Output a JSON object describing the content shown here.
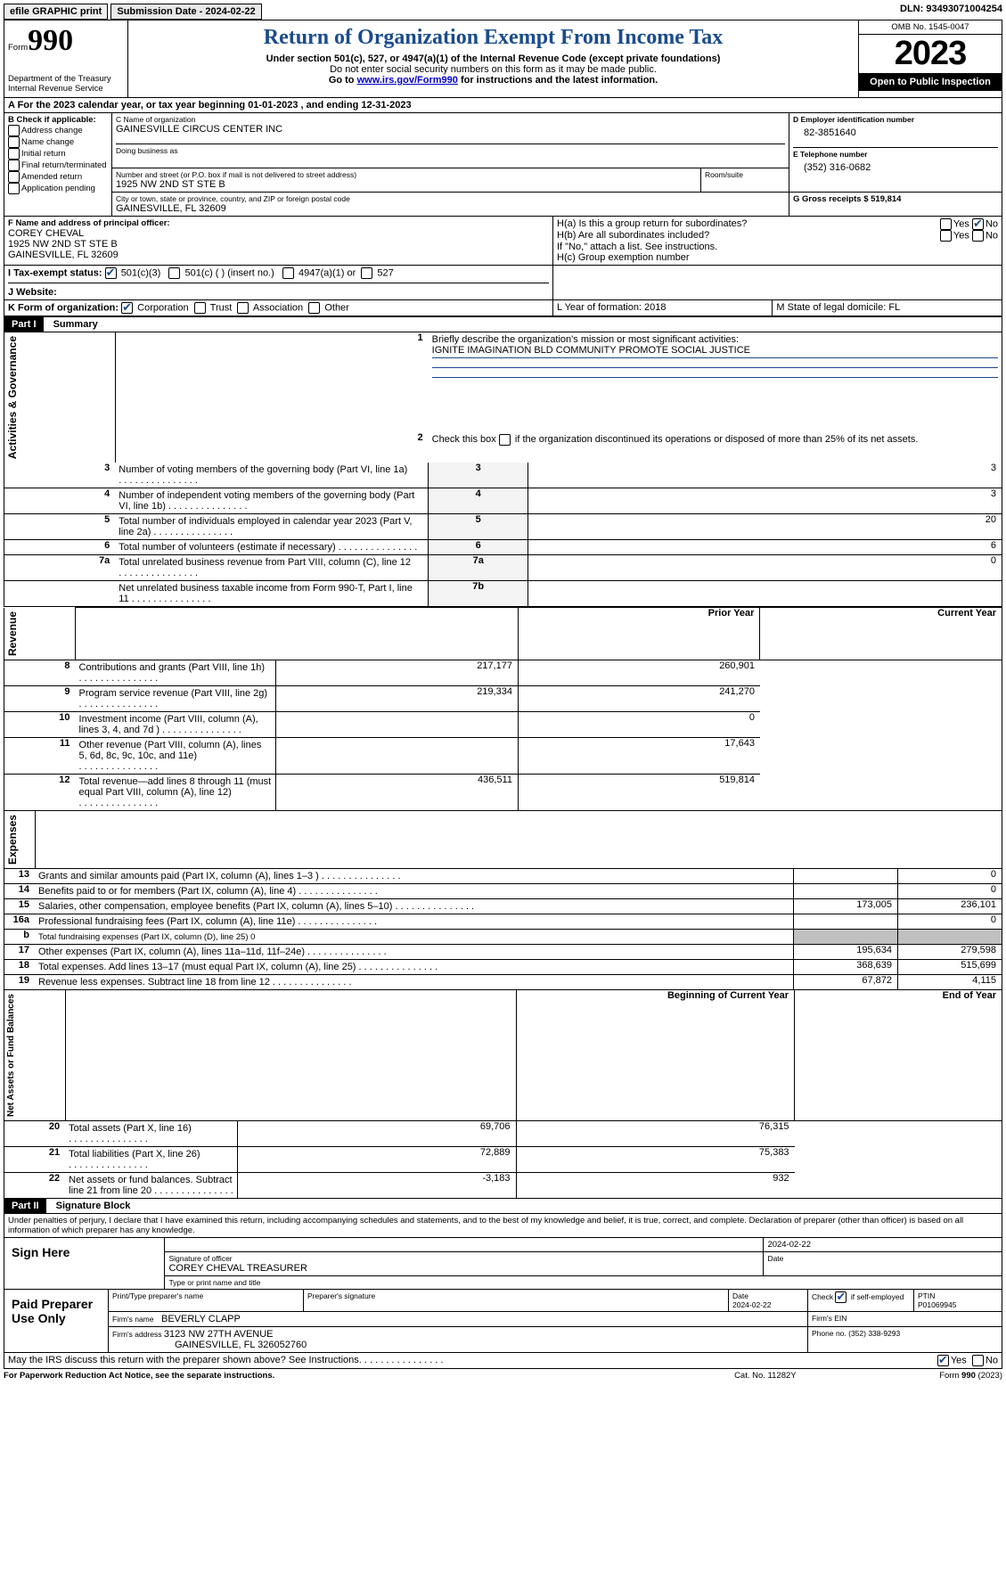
{
  "toolbar": {
    "efile": "efile GRAPHIC print",
    "submission_label": "Submission Date - 2024-02-22",
    "dln_label": "DLN: 93493071004254"
  },
  "header": {
    "form_word": "Form",
    "form_no": "990",
    "title": "Return of Organization Exempt From Income Tax",
    "subtitle": "Under section 501(c), 527, or 4947(a)(1) of the Internal Revenue Code (except private foundations)",
    "ssn_note": "Do not enter social security numbers on this form as it may be made public.",
    "goto": "Go to ",
    "goto_url": "www.irs.gov/Form990",
    "goto_tail": " for instructions and the latest information.",
    "dept": "Department of the Treasury",
    "irs": "Internal Revenue Service",
    "omb": "OMB No. 1545-0047",
    "year": "2023",
    "open": "Open to Public Inspection"
  },
  "A": {
    "line": "A For the 2023 calendar year, or tax year beginning 01-01-2023   , and ending 12-31-2023"
  },
  "B": {
    "label": "B Check if applicable:",
    "items": [
      "Address change",
      "Name change",
      "Initial return",
      "Final return/terminated",
      "Amended return",
      "Application pending"
    ]
  },
  "C": {
    "name_label": "C Name of organization",
    "name": "GAINESVILLE CIRCUS CENTER INC",
    "dba_label": "Doing business as",
    "street_label": "Number and street (or P.O. box if mail is not delivered to street address)",
    "street": "1925 NW 2ND ST STE B",
    "room_label": "Room/suite",
    "city_label": "City or town, state or province, country, and ZIP or foreign postal code",
    "city": "GAINESVILLE, FL  32609"
  },
  "D": {
    "label": "D Employer identification number",
    "value": "82-3851640"
  },
  "E": {
    "label": "E Telephone number",
    "value": "(352) 316-0682"
  },
  "G": {
    "label": "G Gross receipts $ 519,814"
  },
  "F": {
    "label": "F  Name and address of principal officer:",
    "name": "COREY CHEVAL",
    "addr1": "1925 NW 2ND ST STE B",
    "addr2": "GAINESVILLE, FL  32609"
  },
  "H": {
    "a": "H(a)  Is this a group return for subordinates?",
    "b": "H(b)  Are all subordinates included?",
    "note": "If \"No,\" attach a list. See instructions.",
    "c": "H(c)  Group exemption number "
  },
  "I": {
    "label": "I   Tax-exempt status:",
    "opts": [
      "501(c)(3)",
      "501(c) (  ) (insert no.)",
      "4947(a)(1) or",
      "527"
    ]
  },
  "J": {
    "label": "J   Website: "
  },
  "K": {
    "label": "K Form of organization:",
    "opts": [
      "Corporation",
      "Trust",
      "Association",
      "Other"
    ]
  },
  "L": {
    "label": "L Year of formation: 2018"
  },
  "M": {
    "label": "M State of legal domicile: FL"
  },
  "part1": {
    "tab": "Part I",
    "title": "Summary",
    "q1": "Briefly describe the organization's mission or most significant activities:",
    "mission": "IGNITE IMAGINATION BLD COMMUNITY PROMOTE SOCIAL JUSTICE",
    "q2": "Check this box         if the organization discontinued its operations or disposed of more than 25% of its net assets.",
    "rows_ag": [
      {
        "n": "3",
        "t": "Number of voting members of the governing body (Part VI, line 1a)",
        "box": "3",
        "v": "3"
      },
      {
        "n": "4",
        "t": "Number of independent voting members of the governing body (Part VI, line 1b)",
        "box": "4",
        "v": "3"
      },
      {
        "n": "5",
        "t": "Total number of individuals employed in calendar year 2023 (Part V, line 2a)",
        "box": "5",
        "v": "20"
      },
      {
        "n": "6",
        "t": "Total number of volunteers (estimate if necessary)",
        "box": "6",
        "v": "6"
      },
      {
        "n": "7a",
        "t": "Total unrelated business revenue from Part VIII, column (C), line 12",
        "box": "7a",
        "v": "0"
      },
      {
        "n": "",
        "t": "Net unrelated business taxable income from Form 990-T, Part I, line 11",
        "box": "7b",
        "v": ""
      }
    ],
    "col_prior": "Prior Year",
    "col_curr": "Current Year",
    "rows_rev": [
      {
        "n": "8",
        "t": "Contributions and grants (Part VIII, line 1h)",
        "p": "217,177",
        "c": "260,901"
      },
      {
        "n": "9",
        "t": "Program service revenue (Part VIII, line 2g)",
        "p": "219,334",
        "c": "241,270"
      },
      {
        "n": "10",
        "t": "Investment income (Part VIII, column (A), lines 3, 4, and 7d )",
        "p": "",
        "c": "0"
      },
      {
        "n": "11",
        "t": "Other revenue (Part VIII, column (A), lines 5, 6d, 8c, 9c, 10c, and 11e)",
        "p": "",
        "c": "17,643"
      },
      {
        "n": "12",
        "t": "Total revenue—add lines 8 through 11 (must equal Part VIII, column (A), line 12)",
        "p": "436,511",
        "c": "519,814"
      }
    ],
    "rows_exp": [
      {
        "n": "13",
        "t": "Grants and similar amounts paid (Part IX, column (A), lines 1–3 )",
        "p": "",
        "c": "0"
      },
      {
        "n": "14",
        "t": "Benefits paid to or for members (Part IX, column (A), line 4)",
        "p": "",
        "c": "0"
      },
      {
        "n": "15",
        "t": "Salaries, other compensation, employee benefits (Part IX, column (A), lines 5–10)",
        "p": "173,005",
        "c": "236,101"
      },
      {
        "n": "16a",
        "t": "Professional fundraising fees (Part IX, column (A), line 11e)",
        "p": "",
        "c": "0"
      },
      {
        "n": "b",
        "t": "Total fundraising expenses (Part IX, column (D), line 25) 0",
        "p": "GREY",
        "c": "GREY"
      },
      {
        "n": "17",
        "t": "Other expenses (Part IX, column (A), lines 11a–11d, 11f–24e)",
        "p": "195,634",
        "c": "279,598"
      },
      {
        "n": "18",
        "t": "Total expenses. Add lines 13–17 (must equal Part IX, column (A), line 25)",
        "p": "368,639",
        "c": "515,699"
      },
      {
        "n": "19",
        "t": "Revenue less expenses. Subtract line 18 from line 12",
        "p": "67,872",
        "c": "4,115"
      }
    ],
    "col_begin": "Beginning of Current Year",
    "col_end": "End of Year",
    "rows_na": [
      {
        "n": "20",
        "t": "Total assets (Part X, line 16)",
        "p": "69,706",
        "c": "76,315"
      },
      {
        "n": "21",
        "t": "Total liabilities (Part X, line 26)",
        "p": "72,889",
        "c": "75,383"
      },
      {
        "n": "22",
        "t": "Net assets or fund balances. Subtract line 21 from line 20",
        "p": "-3,183",
        "c": "932"
      }
    ],
    "vlabels": {
      "ag": "Activities & Governance",
      "rev": "Revenue",
      "exp": "Expenses",
      "na": "Net Assets or Fund Balances"
    }
  },
  "part2": {
    "tab": "Part II",
    "title": "Signature Block",
    "decl": "Under penalties of perjury, I declare that I have examined this return, including accompanying schedules and statements, and to the best of my knowledge and belief, it is true, correct, and complete. Declaration of preparer (other than officer) is based on all information of which preparer has any knowledge.",
    "sign_here": "Sign Here",
    "sig_officer": "Signature of officer",
    "officer_name": "COREY CHEVAL TREASURER",
    "type_name": "Type or print name and title",
    "date_label": "Date",
    "sign_date": "2024-02-22",
    "paid": "Paid Preparer Use Only",
    "prep_name_label": "Print/Type preparer's name",
    "prep_sig_label": "Preparer's signature",
    "prep_date": "2024-02-22",
    "self_emp": "Check        if self-employed",
    "ptin_label": "PTIN",
    "ptin": "P01069945",
    "firm_name_label": "Firm's name   ",
    "firm_name": "BEVERLY CLAPP",
    "firm_ein_label": "Firm's EIN ",
    "firm_addr_label": "Firm's address ",
    "firm_addr1": "3123 NW 27TH AVENUE",
    "firm_addr2": "GAINESVILLE, FL  326052760",
    "phone_label": "Phone no. (352) 338-9293",
    "discuss": "May the IRS discuss this return with the preparer shown above? See Instructions.",
    "yes": "Yes",
    "no": "No"
  },
  "footer": {
    "pra": "For Paperwork Reduction Act Notice, see the separate instructions.",
    "cat": "Cat. No. 11282Y",
    "form": "Form 990 (2023)"
  }
}
